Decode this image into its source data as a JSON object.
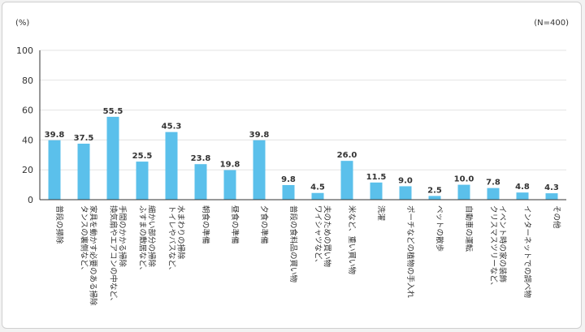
{
  "chart_data": {
    "type": "bar",
    "unit_label": "(%)",
    "sample_label": "(N=400)",
    "ylim": [
      0,
      100
    ],
    "yticks": [
      "0",
      "20",
      "40",
      "60",
      "80",
      "100"
    ],
    "bar_color": "#5bc0eb",
    "categories": [
      [
        "普段の掃除"
      ],
      [
        "タンスの裏側など、",
        "家具を動かす必要のある掃除"
      ],
      [
        "換気扇やエアコンの中など、",
        "手間のかかる掃除"
      ],
      [
        "ふすまの敷居など、",
        "細かい部分の掃除"
      ],
      [
        "トイレやバスなど、",
        "水まわりの掃除"
      ],
      [
        "朝食の準備"
      ],
      [
        "昼食の準備"
      ],
      [
        "夕食の準備"
      ],
      [
        "普段の食料品の買い物"
      ],
      [
        "ワイシャツなど、",
        "夫のための買い物"
      ],
      [
        "米など、重い買い物"
      ],
      [
        "洗濯"
      ],
      [
        "ポーチなどの植物の手入れ"
      ],
      [
        "ペットの散歩"
      ],
      [
        "自動車の運転"
      ],
      [
        "クリスマスツリーなど、",
        "イベント時の家の装飾"
      ],
      [
        "インターネットでの調べ物"
      ],
      [
        "その他"
      ]
    ],
    "values": [
      39.8,
      37.5,
      55.5,
      25.5,
      45.3,
      23.8,
      19.8,
      39.8,
      9.8,
      4.5,
      26.0,
      11.5,
      9.0,
      2.5,
      10.0,
      7.8,
      4.8,
      4.3
    ],
    "value_labels": [
      "39.8",
      "37.5",
      "55.5",
      "25.5",
      "45.3",
      "23.8",
      "19.8",
      "39.8",
      "9.8",
      "4.5",
      "26.0",
      "11.5",
      "9.0",
      "2.5",
      "10.0",
      "7.8",
      "4.8",
      "4.3"
    ]
  }
}
